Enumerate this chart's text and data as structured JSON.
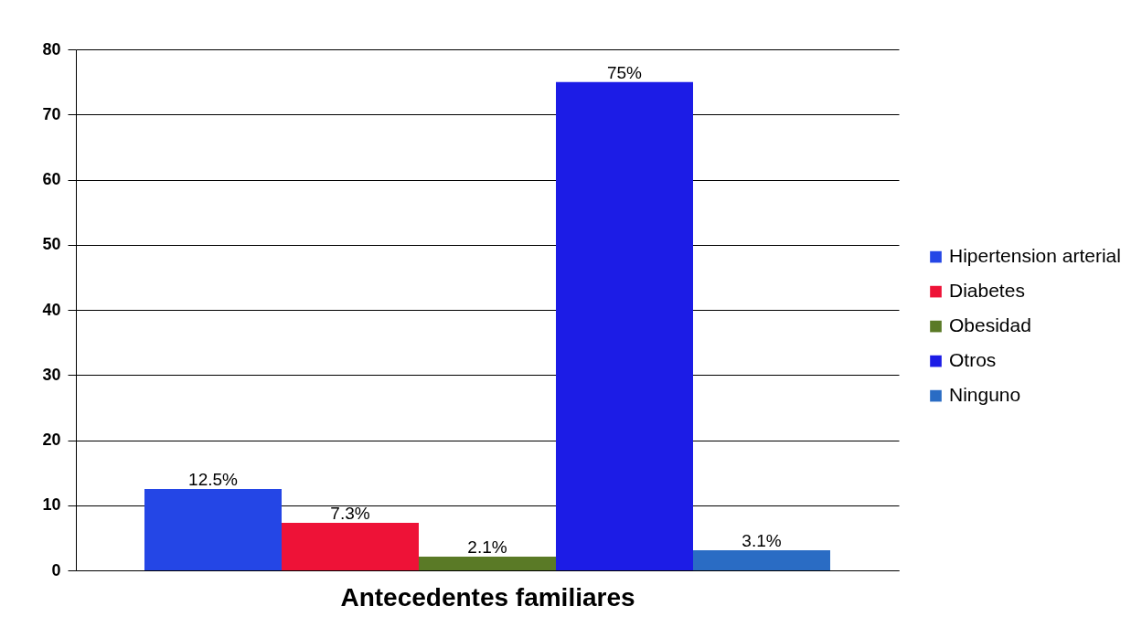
{
  "chart_data": {
    "type": "bar",
    "categories": [
      null
    ],
    "xlabel": "Antecedentes familiares",
    "series": [
      {
        "name": "Hipertension arterial",
        "color": "#2446e6",
        "values": [
          12.5
        ],
        "value_labels": [
          "12.5%"
        ]
      },
      {
        "name": "Diabetes",
        "color": "#ee1237",
        "values": [
          7.3
        ],
        "value_labels": [
          "7.3%"
        ]
      },
      {
        "name": "Obesidad",
        "color": "#5a7a26",
        "values": [
          2.1
        ],
        "value_labels": [
          "2.1%"
        ]
      },
      {
        "name": "Otros",
        "color": "#1c1ce6",
        "values": [
          75
        ],
        "value_labels": [
          "75%"
        ]
      },
      {
        "name": "Ninguno",
        "color": "#2a6cc4",
        "values": [
          3.1
        ],
        "value_labels": [
          "3.1%"
        ]
      }
    ],
    "ylim": [
      0,
      80
    ],
    "yticks": [
      0,
      10,
      20,
      30,
      40,
      50,
      60,
      70,
      80
    ],
    "grid": "y",
    "legend": "right"
  }
}
